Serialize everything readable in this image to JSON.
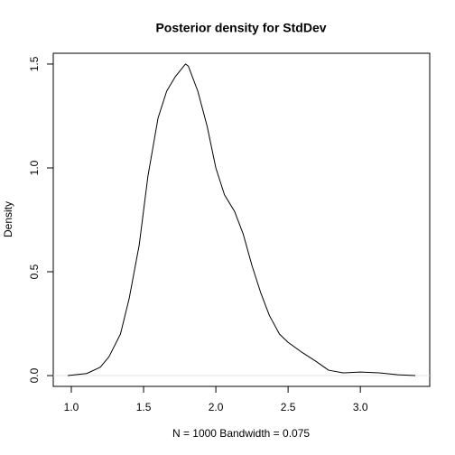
{
  "chart_data": {
    "type": "line",
    "title": "Posterior density for StdDev",
    "xlabel": "N = 1000   Bandwidth = 0.075",
    "ylabel": "Density",
    "x": [
      0.975,
      1.106,
      1.2,
      1.26,
      1.34,
      1.4,
      1.47,
      1.53,
      1.6,
      1.66,
      1.72,
      1.79,
      1.81,
      1.875,
      1.94,
      2.0,
      2.06,
      2.13,
      2.19,
      2.25,
      2.31,
      2.37,
      2.44,
      2.5,
      2.6,
      2.69,
      2.78,
      2.88,
      3.0,
      3.13,
      3.26,
      3.38
    ],
    "series": [
      {
        "color": "#000000",
        "values": [
          0,
          0.01,
          0.04,
          0.09,
          0.2,
          0.37,
          0.63,
          0.96,
          1.24,
          1.37,
          1.44,
          1.5,
          1.49,
          1.37,
          1.2,
          1.0,
          0.87,
          0.79,
          0.68,
          0.53,
          0.4,
          0.29,
          0.2,
          0.16,
          0.11,
          0.07,
          0.026,
          0.013,
          0.017,
          0.013,
          0.004,
          0
        ]
      }
    ],
    "xlim": [
      0.875,
      3.48
    ],
    "ylim": [
      -0.052,
      1.552
    ],
    "xticks": [
      {
        "value": 1,
        "label": "1.0"
      },
      {
        "value": 1.5,
        "label": "1.5"
      },
      {
        "value": 2,
        "label": "2.0"
      },
      {
        "value": 2.5,
        "label": "2.5"
      },
      {
        "value": 3,
        "label": "3.0"
      }
    ],
    "yticks": [
      {
        "value": 0,
        "label": "0.0"
      },
      {
        "value": 0.5,
        "label": "0.5"
      },
      {
        "value": 1,
        "label": "1.0"
      },
      {
        "value": 1.5,
        "label": "1.5"
      }
    ],
    "zero_line": true
  }
}
